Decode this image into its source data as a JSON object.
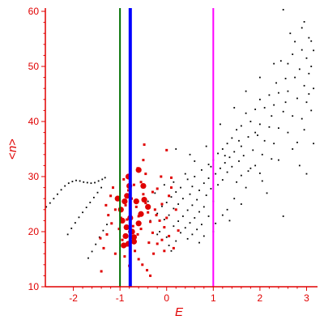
{
  "chart_data": {
    "type": "scatter",
    "xlabel": "E",
    "ylabel_prefix": "<",
    "ylabel_var": "n",
    "ylabel_suffix": ">",
    "xlim": [
      -2.6,
      3.2
    ],
    "ylim": [
      10,
      60
    ],
    "x_ticks": [
      -2,
      -1,
      0,
      1,
      2,
      3
    ],
    "x_tick_labels": [
      "-2",
      "-1",
      "0",
      "1",
      "2",
      "3"
    ],
    "y_ticks": [
      10,
      20,
      30,
      40,
      50,
      60
    ],
    "y_tick_labels": [
      "10",
      "20",
      "30",
      "40",
      "50",
      "60"
    ],
    "grid": false,
    "colors": {
      "axis": "#e00000",
      "black_points": "#000000",
      "red_points": "#e00000",
      "green_line": "#007000",
      "blue_line": "#0000ff",
      "magenta_line": "#ff00ff"
    },
    "vertical_lines": [
      {
        "x": -1.0,
        "color": "#007000",
        "width": "thin"
      },
      {
        "x": -0.78,
        "color": "#0000ff",
        "width": "thick"
      },
      {
        "x": 1.0,
        "color": "#ff00ff",
        "width": "thin"
      }
    ],
    "black_curve": [
      [
        -2.58,
        24.5
      ],
      [
        -2.5,
        25.2
      ],
      [
        -2.42,
        26.0
      ],
      [
        -2.34,
        26.8
      ],
      [
        -2.26,
        27.6
      ],
      [
        -2.18,
        28.3
      ],
      [
        -2.1,
        28.8
      ],
      [
        -2.02,
        29.1
      ],
      [
        -1.94,
        29.3
      ],
      [
        -1.86,
        29.2
      ],
      [
        -1.78,
        29.0
      ],
      [
        -1.7,
        28.9
      ],
      [
        -1.62,
        28.8
      ],
      [
        -1.54,
        28.9
      ],
      [
        -1.46,
        29.2
      ],
      [
        -1.38,
        29.5
      ],
      [
        -1.32,
        29.8
      ],
      [
        -2.12,
        19.5
      ],
      [
        -2.04,
        20.6
      ],
      [
        -1.96,
        21.6
      ],
      [
        -1.88,
        22.6
      ],
      [
        -1.8,
        23.5
      ],
      [
        -1.72,
        24.4
      ],
      [
        -1.64,
        25.3
      ],
      [
        -1.56,
        26.2
      ],
      [
        -1.48,
        27.1
      ],
      [
        -1.4,
        28.0
      ],
      [
        -1.68,
        15.2
      ],
      [
        -1.6,
        16.4
      ],
      [
        -1.52,
        17.7
      ],
      [
        -1.44,
        19.0
      ],
      [
        -1.36,
        20.2
      ],
      [
        -1.28,
        21.3
      ]
    ],
    "black_points": [
      [
        2.5,
        60.3
      ],
      [
        2.95,
        58.1
      ],
      [
        3.05,
        55.2
      ],
      [
        3.1,
        54.6
      ],
      [
        3.15,
        52.9
      ],
      [
        2.9,
        53.0
      ],
      [
        3.0,
        51.5
      ],
      [
        2.7,
        52.2
      ],
      [
        2.6,
        50.5
      ],
      [
        2.45,
        51.0
      ],
      [
        3.1,
        50.0
      ],
      [
        2.85,
        49.5
      ],
      [
        3.05,
        48.7
      ],
      [
        2.75,
        48.0
      ],
      [
        2.55,
        47.8
      ],
      [
        2.35,
        47.0
      ],
      [
        2.95,
        46.5
      ],
      [
        3.15,
        46.0
      ],
      [
        2.6,
        45.5
      ],
      [
        2.4,
        45.2
      ],
      [
        2.2,
        44.8
      ],
      [
        2.0,
        44.0
      ],
      [
        2.8,
        44.2
      ],
      [
        3.0,
        43.5
      ],
      [
        2.3,
        43.0
      ],
      [
        2.1,
        42.5
      ],
      [
        1.9,
        42.2
      ],
      [
        1.7,
        41.5
      ],
      [
        2.5,
        41.8
      ],
      [
        2.7,
        41.0
      ],
      [
        2.9,
        40.5
      ],
      [
        1.8,
        40.0
      ],
      [
        2.0,
        39.5
      ],
      [
        2.2,
        39.0
      ],
      [
        1.6,
        39.2
      ],
      [
        1.5,
        38.5
      ],
      [
        2.4,
        38.8
      ],
      [
        2.6,
        38.0
      ],
      [
        1.95,
        37.5
      ],
      [
        1.75,
        37.2
      ],
      [
        1.4,
        37.0
      ],
      [
        2.1,
        36.5
      ],
      [
        1.3,
        36.0
      ],
      [
        1.6,
        35.5
      ],
      [
        2.3,
        36.0
      ],
      [
        2.8,
        36.2
      ],
      [
        1.2,
        35.0
      ],
      [
        1.45,
        34.5
      ],
      [
        1.85,
        34.8
      ],
      [
        2.05,
        34.0
      ],
      [
        1.1,
        34.2
      ],
      [
        1.35,
        33.5
      ],
      [
        1.65,
        33.8
      ],
      [
        2.25,
        33.2
      ],
      [
        1.0,
        33.0
      ],
      [
        1.25,
        32.5
      ],
      [
        1.55,
        32.8
      ],
      [
        1.9,
        32.0
      ],
      [
        0.9,
        32.2
      ],
      [
        1.15,
        31.5
      ],
      [
        1.4,
        31.8
      ],
      [
        1.75,
        31.0
      ],
      [
        0.75,
        31.2
      ],
      [
        1.05,
        30.5
      ],
      [
        1.3,
        30.8
      ],
      [
        1.6,
        30.2
      ],
      [
        2.0,
        30.6
      ],
      [
        0.6,
        30.0
      ],
      [
        0.9,
        29.7
      ],
      [
        1.2,
        29.4
      ],
      [
        1.5,
        29.0
      ],
      [
        0.45,
        29.5
      ],
      [
        0.8,
        28.8
      ],
      [
        1.1,
        28.5
      ],
      [
        0.55,
        28.2
      ],
      [
        0.3,
        28.0
      ],
      [
        0.95,
        27.8
      ],
      [
        0.7,
        27.5
      ],
      [
        0.2,
        27.2
      ],
      [
        0.5,
        26.8
      ],
      [
        0.85,
        26.6
      ],
      [
        0.1,
        26.3
      ],
      [
        0.35,
        26.0
      ],
      [
        0.65,
        25.8
      ],
      [
        1.0,
        25.5
      ],
      [
        0.0,
        25.3
      ],
      [
        0.25,
        25.0
      ],
      [
        0.55,
        24.8
      ],
      [
        0.8,
        24.5
      ],
      [
        -0.1,
        24.6
      ],
      [
        0.15,
        24.2
      ],
      [
        0.45,
        23.9
      ],
      [
        0.7,
        23.6
      ],
      [
        1.3,
        24.0
      ],
      [
        -0.2,
        23.3
      ],
      [
        0.05,
        23.0
      ],
      [
        0.35,
        22.8
      ],
      [
        0.6,
        22.5
      ],
      [
        0.9,
        22.8
      ],
      [
        -0.05,
        22.2
      ],
      [
        0.25,
        21.9
      ],
      [
        0.5,
        21.6
      ],
      [
        0.75,
        21.3
      ],
      [
        0.15,
        21.0
      ],
      [
        0.4,
        20.7
      ],
      [
        0.65,
        20.4
      ],
      [
        0.3,
        19.8
      ],
      [
        0.55,
        19.5
      ],
      [
        0.8,
        19.2
      ],
      [
        0.45,
        18.7
      ],
      [
        0.2,
        18.3
      ],
      [
        0.0,
        19.0
      ],
      [
        0.05,
        17.5
      ],
      [
        -0.15,
        20.0
      ],
      [
        0.7,
        18.0
      ],
      [
        1.05,
        21.5
      ],
      [
        1.2,
        23.0
      ],
      [
        1.45,
        26.0
      ],
      [
        1.7,
        28.0
      ],
      [
        2.05,
        29.2
      ],
      [
        2.4,
        33.0
      ],
      [
        2.7,
        35.0
      ],
      [
        2.95,
        38.5
      ],
      [
        3.1,
        42.0
      ],
      [
        3.05,
        45.0
      ],
      [
        2.55,
        43.5
      ],
      [
        2.25,
        41.0
      ],
      [
        1.9,
        38.0
      ],
      [
        1.55,
        36.5
      ],
      [
        1.25,
        33.8
      ],
      [
        0.95,
        31.8
      ],
      [
        0.6,
        32.8
      ],
      [
        0.4,
        30.5
      ],
      [
        0.15,
        29.0
      ],
      [
        -0.05,
        28.5
      ],
      [
        -0.25,
        27.0
      ],
      [
        -0.4,
        25.5
      ],
      [
        -0.35,
        22.0
      ],
      [
        -0.2,
        19.5
      ],
      [
        0.1,
        16.5
      ],
      [
        2.5,
        22.8
      ],
      [
        3.0,
        30.5
      ],
      [
        3.15,
        36.0
      ],
      [
        2.85,
        32.0
      ],
      [
        1.8,
        31.5
      ],
      [
        2.15,
        27.0
      ],
      [
        1.6,
        25.0
      ],
      [
        1.35,
        22.0
      ],
      [
        1.0,
        20.0
      ],
      [
        0.85,
        35.5
      ],
      [
        0.5,
        34.0
      ],
      [
        0.2,
        35.0
      ],
      [
        2.3,
        50.5
      ],
      [
        2.0,
        48.0
      ],
      [
        1.7,
        45.5
      ],
      [
        1.45,
        42.5
      ],
      [
        1.15,
        39.5
      ],
      [
        2.65,
        56.0
      ],
      [
        2.9,
        57.0
      ],
      [
        2.75,
        54.5
      ]
    ],
    "red_points": [
      [
        -0.82,
        27.5
      ],
      [
        -0.75,
        26.0
      ],
      [
        -0.88,
        24.8
      ],
      [
        -0.78,
        23.5
      ],
      [
        -0.85,
        22.2
      ],
      [
        -0.72,
        21.0
      ],
      [
        -0.8,
        20.0
      ],
      [
        -0.9,
        19.0
      ],
      [
        -0.76,
        18.2
      ],
      [
        -0.84,
        17.5
      ],
      [
        -0.7,
        28.5
      ],
      [
        -0.92,
        29.5
      ],
      [
        -1.05,
        26.3
      ],
      [
        -1.1,
        24.0
      ],
      [
        -0.98,
        22.5
      ],
      [
        -1.02,
        20.5
      ],
      [
        -0.95,
        18.5
      ],
      [
        -0.65,
        24.5
      ],
      [
        -0.6,
        22.8
      ],
      [
        -0.55,
        20.5
      ],
      [
        -0.5,
        26.8
      ],
      [
        -0.45,
        25.2
      ],
      [
        -0.4,
        23.5
      ],
      [
        -0.35,
        21.8
      ],
      [
        -0.3,
        19.8
      ],
      [
        -0.25,
        24.0
      ],
      [
        -0.2,
        27.8
      ],
      [
        -0.15,
        22.0
      ],
      [
        -0.1,
        25.0
      ],
      [
        -0.05,
        20.8
      ],
      [
        0.0,
        22.5
      ],
      [
        0.05,
        26.5
      ],
      [
        0.1,
        28.0
      ],
      [
        -0.45,
        30.5
      ],
      [
        -0.55,
        29.0
      ],
      [
        -0.62,
        31.5
      ],
      [
        -0.5,
        33.0
      ],
      [
        -0.48,
        35.8
      ],
      [
        0.0,
        34.8
      ],
      [
        0.1,
        29.8
      ],
      [
        -0.68,
        16.5
      ],
      [
        -0.6,
        15.0
      ],
      [
        -0.52,
        14.0
      ],
      [
        -0.42,
        13.0
      ],
      [
        -0.35,
        12.0
      ],
      [
        -0.28,
        16.0
      ],
      [
        -0.2,
        17.8
      ],
      [
        -0.1,
        18.5
      ],
      [
        0.05,
        19.2
      ],
      [
        0.15,
        17.0
      ],
      [
        -1.15,
        28.0
      ],
      [
        -1.2,
        26.5
      ],
      [
        -1.25,
        23.0
      ],
      [
        -1.18,
        21.5
      ],
      [
        -1.28,
        19.5
      ],
      [
        -1.35,
        17.0
      ],
      [
        -1.42,
        18.8
      ],
      [
        -1.3,
        24.8
      ],
      [
        -1.4,
        12.8
      ],
      [
        -1.1,
        16.0
      ],
      [
        -0.9,
        15.5
      ],
      [
        -0.8,
        13.8
      ],
      [
        -0.62,
        19.5
      ],
      [
        -0.38,
        18.0
      ],
      [
        -0.3,
        27.2
      ],
      [
        -0.22,
        23.0
      ],
      [
        -0.12,
        30.0
      ],
      [
        -0.05,
        16.5
      ],
      [
        0.2,
        24.0
      ],
      [
        0.25,
        20.2
      ]
    ],
    "red_large": [
      [
        -0.82,
        30.0
      ],
      [
        -0.8,
        28.3
      ],
      [
        -0.85,
        26.5
      ],
      [
        -0.9,
        25.5
      ],
      [
        -0.78,
        22.5
      ],
      [
        -0.86,
        20.8
      ],
      [
        -0.74,
        20.0
      ],
      [
        -0.82,
        17.8
      ],
      [
        -0.88,
        19.2
      ],
      [
        -0.7,
        19.0
      ],
      [
        -1.05,
        26.0
      ],
      [
        -0.98,
        24.0
      ],
      [
        -0.95,
        22.0
      ],
      [
        -0.65,
        25.5
      ],
      [
        -0.55,
        23.2
      ],
      [
        -0.48,
        25.8
      ],
      [
        -0.4,
        24.5
      ],
      [
        -0.6,
        21.5
      ],
      [
        -0.7,
        18.2
      ],
      [
        -0.92,
        17.5
      ],
      [
        -0.6,
        31.2
      ],
      [
        -0.5,
        28.3
      ]
    ]
  }
}
